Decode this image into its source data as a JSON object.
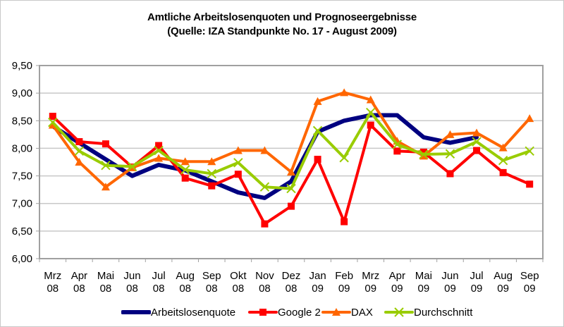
{
  "chart_data": {
    "type": "line",
    "title": "Amtliche Arbeitslosenquoten und Prognoseergebnisse",
    "subtitle": "(Quelle: IZA Standpunkte No. 17 - August 2009)",
    "xlabel": "",
    "ylabel": "",
    "ylim": [
      6.0,
      9.5
    ],
    "y_ticks": [
      "9,50",
      "9,00",
      "8,50",
      "8,00",
      "7,50",
      "7,00",
      "6,50",
      "6,00"
    ],
    "y_tick_values": [
      9.5,
      9.0,
      8.5,
      8.0,
      7.5,
      7.0,
      6.5,
      6.0
    ],
    "grid": true,
    "legend_position": "bottom",
    "categories": [
      [
        "Mrz",
        "08"
      ],
      [
        "Apr",
        "08"
      ],
      [
        "Mai",
        "08"
      ],
      [
        "Jun",
        "08"
      ],
      [
        "Jul",
        "08"
      ],
      [
        "Aug",
        "08"
      ],
      [
        "Sep",
        "08"
      ],
      [
        "Okt",
        "08"
      ],
      [
        "Nov",
        "08"
      ],
      [
        "Dez",
        "08"
      ],
      [
        "Jan",
        "09"
      ],
      [
        "Feb",
        "09"
      ],
      [
        "Mrz",
        "09"
      ],
      [
        "Apr",
        "09"
      ],
      [
        "Mai",
        "09"
      ],
      [
        "Jun",
        "09"
      ],
      [
        "Jul",
        "09"
      ],
      [
        "Aug",
        "09"
      ],
      [
        "Sep",
        "09"
      ]
    ],
    "series": [
      {
        "name": "Arbeitslosenquote",
        "color": "#000080",
        "marker": "none",
        "values": [
          8.4,
          8.1,
          7.8,
          7.5,
          7.7,
          7.6,
          7.4,
          7.2,
          7.1,
          7.4,
          8.3,
          8.5,
          8.6,
          8.6,
          8.2,
          8.1,
          8.2,
          null,
          null
        ]
      },
      {
        "name": "Google 2",
        "color": "#ff0000",
        "marker": "square",
        "values": [
          8.58,
          8.12,
          8.08,
          7.66,
          8.05,
          7.46,
          7.32,
          7.53,
          6.63,
          6.95,
          7.8,
          6.67,
          8.42,
          7.95,
          7.93,
          7.54,
          7.96,
          7.56,
          7.35
        ]
      },
      {
        "name": "DAX",
        "color": "#ff6600",
        "marker": "triangle",
        "values": [
          8.42,
          7.75,
          7.3,
          7.65,
          7.82,
          7.76,
          7.76,
          7.96,
          7.96,
          7.57,
          8.85,
          9.01,
          8.88,
          8.13,
          7.86,
          8.25,
          8.28,
          8.01,
          8.54
        ]
      },
      {
        "name": "Durchschnitt",
        "color": "#99cc00",
        "marker": "x",
        "values": [
          8.47,
          7.95,
          7.69,
          7.67,
          7.96,
          7.61,
          7.54,
          7.74,
          7.3,
          7.27,
          8.32,
          7.83,
          8.65,
          8.07,
          7.89,
          7.9,
          8.12,
          7.78,
          7.95
        ]
      }
    ]
  }
}
